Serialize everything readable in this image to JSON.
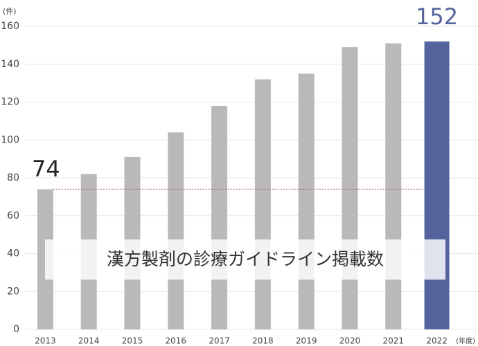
{
  "chart_data": {
    "type": "bar",
    "title": "漢方製剤の診療ガイドライン掲載数",
    "y_unit": "(件)",
    "x_unit": "(年度)",
    "categories": [
      "2013",
      "2014",
      "2015",
      "2016",
      "2017",
      "2018",
      "2019",
      "2020",
      "2021",
      "2022"
    ],
    "values": [
      74,
      82,
      91,
      104,
      118,
      132,
      135,
      149,
      151,
      152
    ],
    "colors": [
      "#b9b9b9",
      "#b9b9b9",
      "#b9b9b9",
      "#b9b9b9",
      "#b9b9b9",
      "#b9b9b9",
      "#b9b9b9",
      "#b9b9b9",
      "#b9b9b9",
      "#55639c"
    ],
    "ylim": [
      0,
      160
    ],
    "yticks": [
      0,
      20,
      40,
      60,
      80,
      100,
      120,
      140,
      160
    ],
    "grid": true
  }
}
